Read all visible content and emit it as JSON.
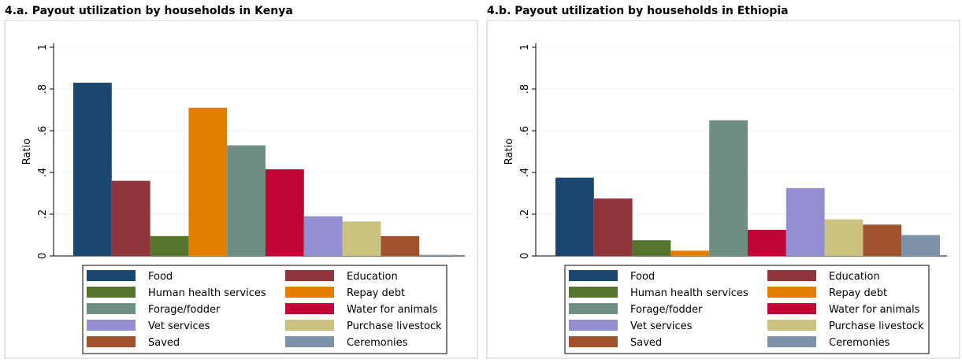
{
  "chart_data": [
    {
      "type": "bar",
      "title": "4.a. Payout utilization by households in Kenya",
      "ylabel": "Ratio",
      "categories": [
        "Food",
        "Education",
        "Human health services",
        "Repay debt",
        "Forage/fodder",
        "Water for animals",
        "Vet services",
        "Purchase livestock",
        "Saved",
        "Ceremonies"
      ],
      "values": [
        0.83,
        0.36,
        0.095,
        0.71,
        0.53,
        0.415,
        0.19,
        0.165,
        0.095,
        0.005
      ],
      "colors": [
        "#1a476f",
        "#90353b",
        "#55752f",
        "#e37e00",
        "#6e8e84",
        "#c10534",
        "#938dd2",
        "#cac27e",
        "#a0522d",
        "#7b92a8"
      ],
      "ylim": [
        0,
        1
      ],
      "yticks": [
        0,
        {
          "value": 0.2,
          "label": ".2"
        },
        {
          "value": 0.4,
          "label": ".4"
        },
        {
          "value": 0.6,
          "label": ".6"
        },
        {
          "value": 0.8,
          "label": ".8"
        },
        1
      ],
      "grid": true
    },
    {
      "type": "bar",
      "title": "4.b. Payout utilization by households in Ethiopia",
      "ylabel": "Ratio",
      "categories": [
        "Food",
        "Education",
        "Human health services",
        "Repay debt",
        "Forage/fodder",
        "Water for animals",
        "Vet services",
        "Purchase livestock",
        "Saved",
        "Ceremonies"
      ],
      "values": [
        0.375,
        0.275,
        0.075,
        0.025,
        0.65,
        0.125,
        0.325,
        0.175,
        0.15,
        0.1
      ],
      "colors": [
        "#1a476f",
        "#90353b",
        "#55752f",
        "#e37e00",
        "#6e8e84",
        "#c10534",
        "#938dd2",
        "#cac27e",
        "#a0522d",
        "#7b92a8"
      ],
      "ylim": [
        0,
        1
      ],
      "yticks": [
        0,
        {
          "value": 0.2,
          "label": ".2"
        },
        {
          "value": 0.4,
          "label": ".4"
        },
        {
          "value": 0.6,
          "label": ".6"
        },
        {
          "value": 0.8,
          "label": ".8"
        },
        1
      ],
      "grid": true
    }
  ]
}
